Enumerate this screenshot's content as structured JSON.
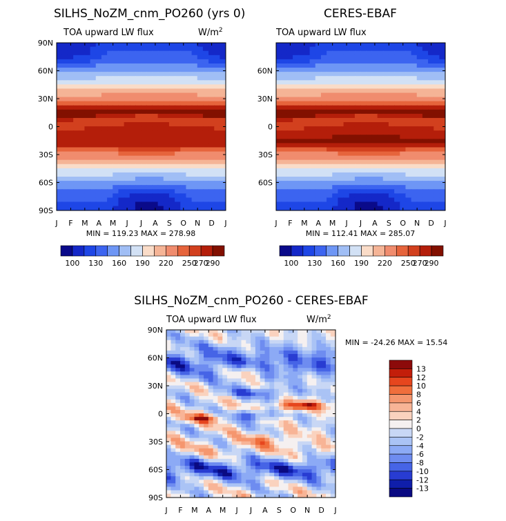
{
  "panels": [
    {
      "title": "SILHS_NoZM_cnm_PO260 (yrs 0)",
      "subtitle": "TOA upward LW flux",
      "units_base": "W/m",
      "units_exp": "2",
      "stats": "MIN = 119.23 MAX = 278.98",
      "lat_labels": [
        "90N",
        "60N",
        "30N",
        "0",
        "30S",
        "60S",
        "90S"
      ]
    },
    {
      "title": "CERES-EBAF",
      "subtitle": "TOA upward LW flux",
      "stats": "MIN = 112.41 MAX = 285.07",
      "lat_labels": [
        "",
        "60N",
        "30N",
        "0",
        "30S",
        "60S",
        ""
      ]
    },
    {
      "title": "SILHS_NoZM_cnm_PO260 - CERES-EBAF",
      "subtitle": "TOA upward LW flux",
      "units_base": "W/m",
      "units_exp": "2",
      "stats": "MIN = -24.26 MAX =  15.54",
      "lat_labels": [
        "90N",
        "60N",
        "30N",
        "0",
        "30S",
        "60S",
        "90S"
      ]
    }
  ],
  "month_labels": [
    "J",
    "F",
    "M",
    "A",
    "M",
    "J",
    "J",
    "A",
    "S",
    "O",
    "N",
    "D",
    "J"
  ],
  "colorbar_top": {
    "labels": [
      "100",
      "130",
      "160",
      "190",
      "220",
      "250",
      "270",
      "290"
    ],
    "colors": [
      "#0a0a8a",
      "#1428c8",
      "#1e46e6",
      "#3c64f0",
      "#6e96f5",
      "#a0bef5",
      "#d2e1f5",
      "#fadcc8",
      "#f5b496",
      "#f08c6e",
      "#e6643c",
      "#d2401e",
      "#b41e0a",
      "#821000"
    ]
  },
  "colorbar_diff": {
    "labels": [
      "13",
      "12",
      "10",
      "8",
      "6",
      "4",
      "2",
      "0",
      "-2",
      "-4",
      "-6",
      "-8",
      "-10",
      "-12",
      "-13"
    ],
    "colors": [
      "#8c0a0a",
      "#c31e0a",
      "#e6461e",
      "#f06e3c",
      "#f5966e",
      "#f8b496",
      "#fad2be",
      "#f5f0f0",
      "#c8d7f5",
      "#aac3f5",
      "#8caaf5",
      "#6e8cf0",
      "#4664e6",
      "#283cd2",
      "#0f1eaa",
      "#0a0a82"
    ]
  },
  "chart_data": [
    {
      "type": "heatmap",
      "title": "SILHS_NoZM_cnm_PO260 (yrs 0)",
      "field": "TOA upward LW flux",
      "units": "W/m2",
      "x": [
        "J",
        "F",
        "M",
        "A",
        "M",
        "J",
        "J",
        "A",
        "S",
        "O",
        "N",
        "D",
        "J"
      ],
      "y": [
        -90,
        -60,
        -30,
        0,
        30,
        60,
        90
      ],
      "min": 119.23,
      "max": 278.98,
      "colorbar_levels": [
        100,
        130,
        160,
        190,
        220,
        250,
        270,
        290
      ]
    },
    {
      "type": "heatmap",
      "title": "CERES-EBAF",
      "field": "TOA upward LW flux",
      "units": "W/m2",
      "x": [
        "J",
        "F",
        "M",
        "A",
        "M",
        "J",
        "J",
        "A",
        "S",
        "O",
        "N",
        "D",
        "J"
      ],
      "y": [
        -90,
        -60,
        -30,
        0,
        30,
        60,
        90
      ],
      "min": 112.41,
      "max": 285.07,
      "colorbar_levels": [
        100,
        130,
        160,
        190,
        220,
        250,
        270,
        290
      ]
    },
    {
      "type": "heatmap",
      "title": "SILHS_NoZM_cnm_PO260 - CERES-EBAF",
      "field": "TOA upward LW flux",
      "units": "W/m2",
      "x": [
        "J",
        "F",
        "M",
        "A",
        "M",
        "J",
        "J",
        "A",
        "S",
        "O",
        "N",
        "D",
        "J"
      ],
      "y": [
        -90,
        -60,
        -30,
        0,
        30,
        60,
        90
      ],
      "min": -24.26,
      "max": 15.54,
      "colorbar_levels": [
        -13,
        -12,
        -10,
        -8,
        -6,
        -4,
        -2,
        0,
        2,
        4,
        6,
        8,
        10,
        12,
        13
      ]
    }
  ]
}
